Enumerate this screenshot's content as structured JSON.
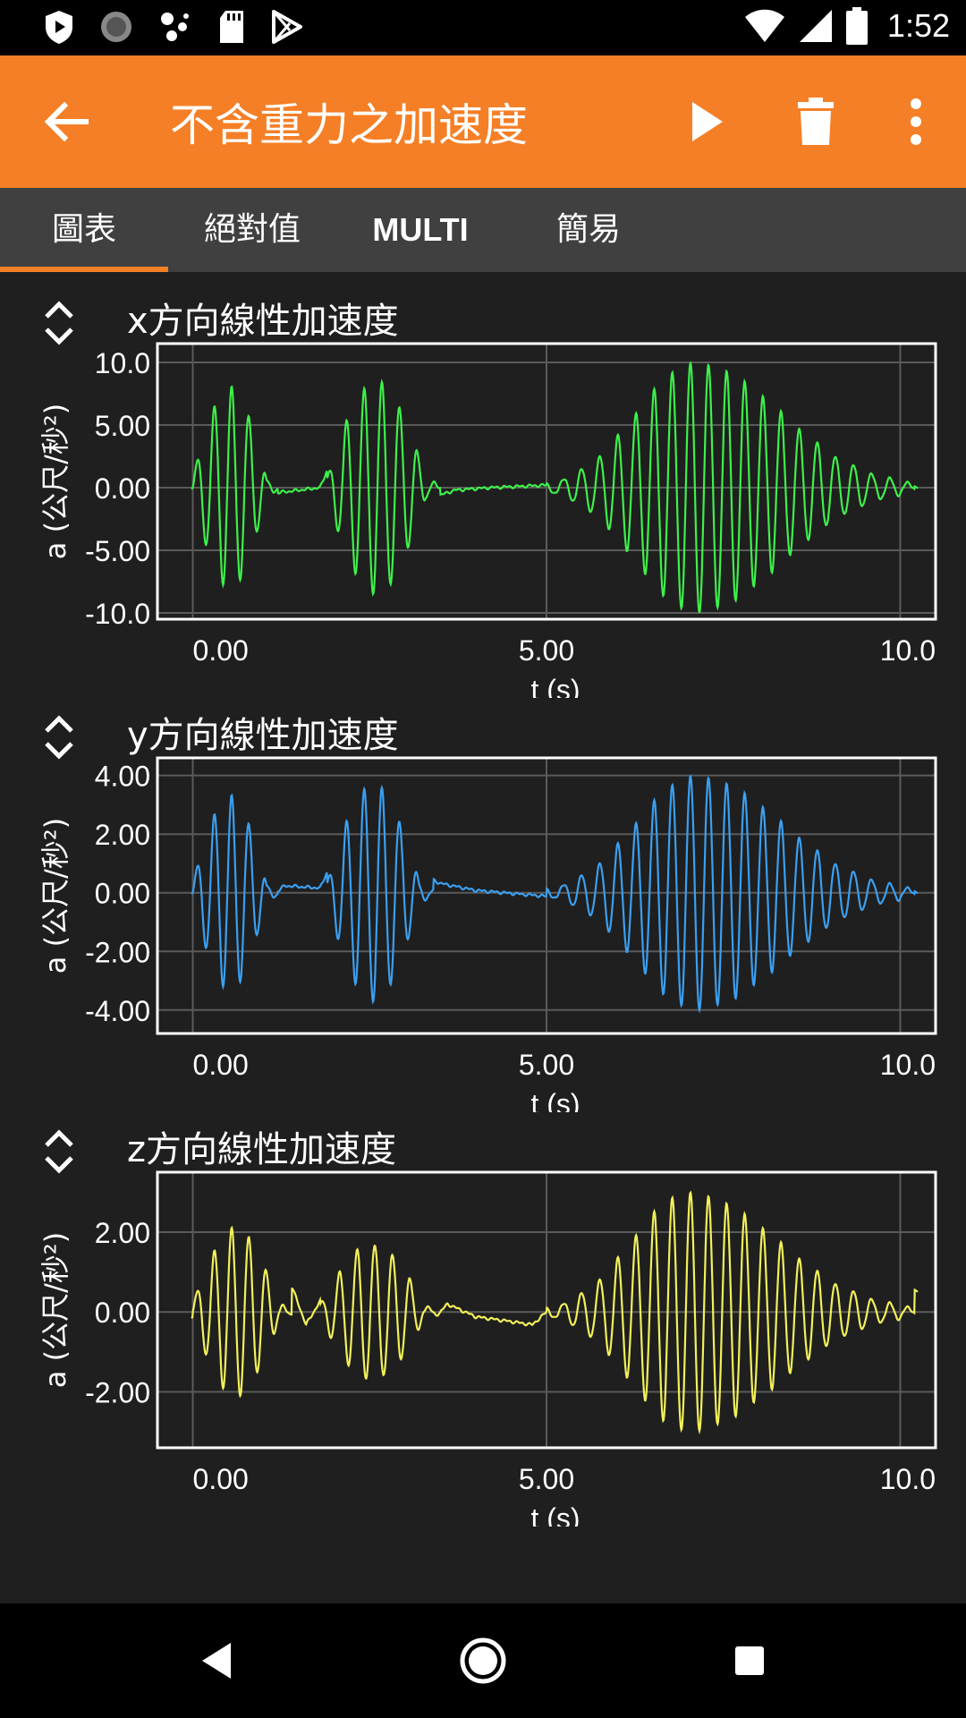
{
  "status_bar": {
    "time": "1:52"
  },
  "app_bar": {
    "title": "不含重力之加速度"
  },
  "tabs": [
    {
      "label": "圖表",
      "active": true
    },
    {
      "label": "絕對值",
      "active": false
    },
    {
      "label": "MULTI",
      "active": false
    },
    {
      "label": "簡易",
      "active": false
    }
  ],
  "colors": {
    "accent": "#f57f26",
    "x": "#3df04a",
    "y": "#3b9ff0",
    "z": "#f2f05a"
  },
  "chart_data": [
    {
      "type": "line",
      "title": "x方向線性加速度",
      "xlabel": "t (s)",
      "ylabel": "a (公尺/秒²)",
      "xlim": [
        -0.5,
        10.5
      ],
      "ylim": [
        -10.5,
        11.5
      ],
      "xticks": [
        0,
        5,
        10
      ],
      "xtick_labels": [
        "0.00",
        "5.00",
        "10.0"
      ],
      "yticks": [
        10,
        5,
        0,
        -5,
        -10
      ],
      "ytick_labels": [
        "10.0",
        "5.00",
        "0.00",
        "-5.00",
        "-10.0"
      ],
      "grid": true,
      "color": "#3df04a",
      "bursts": [
        {
          "start": 0.0,
          "end": 1.2,
          "amp": 8.0,
          "freq": 4.1
        },
        {
          "start": 1.9,
          "end": 3.5,
          "amp": 8.5,
          "freq": 4.0
        },
        {
          "start": 5.0,
          "end": 10.2,
          "amp": 10.0,
          "freq": 3.9,
          "peak": 7.1
        }
      ],
      "x": [
        0.0,
        0.12,
        0.25,
        0.37,
        0.5,
        0.62,
        0.75,
        0.87,
        1.0,
        1.2,
        1.5,
        1.8,
        2.0,
        2.13,
        2.25,
        2.38,
        2.5,
        2.63,
        2.75,
        2.88,
        3.0,
        3.13,
        3.25,
        3.4,
        3.7,
        4.2,
        5.0,
        5.8,
        6.2,
        6.5,
        6.8,
        7.1,
        7.5,
        8.0,
        8.5,
        9.0,
        9.5,
        10.0,
        10.2
      ],
      "y": [
        0.0,
        6.0,
        -7.0,
        7.5,
        -7.0,
        8.5,
        -7.0,
        4.0,
        -3.0,
        -1.0,
        -0.5,
        0.0,
        7.0,
        -8.0,
        7.5,
        -8.5,
        7.5,
        -8.0,
        8.0,
        -8.5,
        7.5,
        -9.5,
        4.0,
        -2.0,
        -0.5,
        0.0,
        0.5,
        2.0,
        5.0,
        -6.5,
        8.5,
        -7.0,
        10.5,
        -6.0,
        4.0,
        -2.5,
        1.0,
        0.3,
        0.0
      ]
    },
    {
      "type": "line",
      "title": "y方向線性加速度",
      "xlabel": "t (s)",
      "ylabel": "a (公尺/秒²)",
      "xlim": [
        -0.5,
        10.5
      ],
      "ylim": [
        -4.8,
        4.6
      ],
      "xticks": [
        0,
        5,
        10
      ],
      "xtick_labels": [
        "0.00",
        "5.00",
        "10.0"
      ],
      "yticks": [
        4,
        2,
        0,
        -2,
        -4
      ],
      "ytick_labels": [
        "4.00",
        "2.00",
        "0.00",
        "-2.00",
        "-4.00"
      ],
      "grid": true,
      "color": "#3b9ff0",
      "bursts": [
        {
          "start": 0.0,
          "end": 1.2,
          "amp": 3.3,
          "freq": 4.1
        },
        {
          "start": 1.9,
          "end": 3.4,
          "amp": 3.7,
          "freq": 4.0
        },
        {
          "start": 5.0,
          "end": 10.2,
          "amp": 4.0,
          "freq": 3.9,
          "peak": 7.1
        }
      ],
      "x": [
        0.0,
        0.12,
        0.25,
        0.37,
        0.5,
        0.62,
        0.75,
        0.87,
        1.0,
        1.3,
        1.8,
        2.0,
        2.13,
        2.25,
        2.38,
        2.5,
        2.63,
        2.75,
        2.88,
        3.0,
        3.13,
        3.25,
        3.5,
        4.0,
        5.0,
        6.0,
        6.5,
        6.8,
        7.1,
        7.3,
        7.6,
        8.0,
        8.5,
        9.0,
        9.5,
        10.0,
        10.2
      ],
      "y": [
        0.0,
        3.2,
        -2.5,
        3.1,
        -2.5,
        3.6,
        -3.3,
        2.8,
        -0.8,
        0.6,
        0.4,
        3.2,
        -2.7,
        3.8,
        -3.0,
        3.7,
        -2.8,
        3.8,
        -2.8,
        3.9,
        -2.7,
        1.5,
        0.8,
        0.2,
        -0.3,
        1.5,
        -2.9,
        3.3,
        -4.5,
        4.2,
        -3.0,
        2.5,
        -1.5,
        1.0,
        -0.5,
        0.1,
        0.0
      ]
    },
    {
      "type": "line",
      "title": "z方向線性加速度",
      "xlabel": "t (s)",
      "ylabel": "a (公尺/秒²)",
      "xlim": [
        -0.5,
        10.5
      ],
      "ylim": [
        -3.4,
        3.5
      ],
      "xticks": [
        0,
        5,
        10
      ],
      "xtick_labels": [
        "0.00",
        "5.00",
        "10.0"
      ],
      "yticks": [
        2,
        0,
        -2
      ],
      "ytick_labels": [
        "2.00",
        "0.00",
        "-2.00"
      ],
      "grid": true,
      "color": "#f2f05a",
      "bursts": [
        {
          "start": 0.0,
          "end": 1.4,
          "amp": 2.1,
          "freq": 4.1
        },
        {
          "start": 1.8,
          "end": 3.5,
          "amp": 1.7,
          "freq": 4.0
        },
        {
          "start": 5.0,
          "end": 10.2,
          "amp": 3.0,
          "freq": 3.9,
          "peak": 7.0
        }
      ],
      "x": [
        0.0,
        0.12,
        0.25,
        0.37,
        0.5,
        0.62,
        0.75,
        0.87,
        1.0,
        1.2,
        1.4,
        1.6,
        1.9,
        2.1,
        2.3,
        2.5,
        2.7,
        2.9,
        3.1,
        3.3,
        3.6,
        4.0,
        4.5,
        4.8,
        5.0,
        5.8,
        6.2,
        6.5,
        6.8,
        7.0,
        7.2,
        7.5,
        8.0,
        8.5,
        9.0,
        9.5,
        9.8,
        10.2
      ],
      "y": [
        -0.3,
        -3.0,
        1.5,
        -2.8,
        1.8,
        -3.0,
        2.0,
        -2.6,
        1.5,
        -2.0,
        1.6,
        -0.8,
        1.4,
        -3.0,
        1.3,
        -2.5,
        1.3,
        -2.6,
        1.0,
        -1.0,
        0.5,
        -0.3,
        -0.6,
        -0.8,
        0.0,
        0.5,
        1.8,
        -2.3,
        2.6,
        -2.9,
        3.3,
        -2.5,
        2.1,
        -1.2,
        1.0,
        -0.6,
        1.2,
        1.3
      ]
    }
  ]
}
